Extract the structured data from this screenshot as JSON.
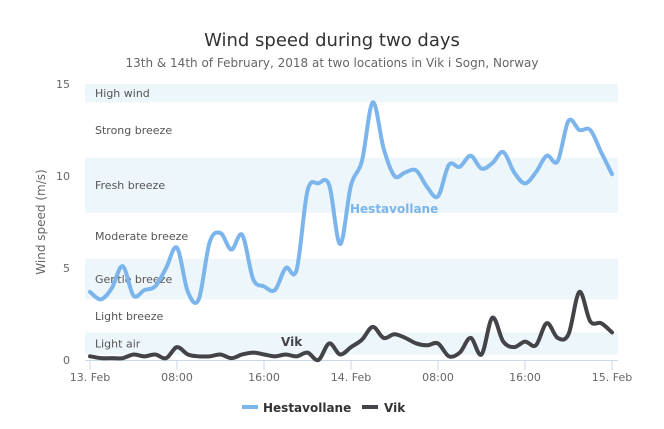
{
  "chart_data": {
    "type": "line",
    "title": "Wind speed during two days",
    "subtitle": "13th & 14th of February, 2018 at two locations in Vik i Sogn, Norway",
    "xlabel": "",
    "ylabel": "Wind speed (m/s)",
    "ylim": [
      0,
      15
    ],
    "yticks": [
      "0",
      "5",
      "10",
      "15"
    ],
    "x_start": "2018-02-13 00:00",
    "x_interval_hours": 1,
    "xticks": [
      {
        "hour": 0,
        "label": "13. Feb"
      },
      {
        "hour": 8,
        "label": "08:00"
      },
      {
        "hour": 16,
        "label": "16:00"
      },
      {
        "hour": 24,
        "label": "14. Feb"
      },
      {
        "hour": 32,
        "label": "08:00"
      },
      {
        "hour": 40,
        "label": "16:00"
      },
      {
        "hour": 48,
        "label": "15. Feb"
      }
    ],
    "grid": false,
    "legend": "bottom-center",
    "plot_bands": [
      {
        "from": 0.3,
        "to": 1.5,
        "label": "Light air",
        "shaded": true
      },
      {
        "from": 1.5,
        "to": 3.3,
        "label": "Light breeze",
        "shaded": false
      },
      {
        "from": 3.3,
        "to": 5.5,
        "label": "Gentle breeze",
        "shaded": true
      },
      {
        "from": 5.5,
        "to": 8,
        "label": "Moderate breeze",
        "shaded": false
      },
      {
        "from": 8,
        "to": 11,
        "label": "Fresh breeze",
        "shaded": true
      },
      {
        "from": 11,
        "to": 14,
        "label": "Strong breeze",
        "shaded": false
      },
      {
        "from": 14,
        "to": 15,
        "label": "High wind",
        "shaded": true
      }
    ],
    "band_color": "#ecf6fb",
    "series": [
      {
        "name": "Hestavollane",
        "color": "#7cb5ec",
        "values": [
          3.7,
          3.3,
          3.9,
          5.1,
          3.5,
          3.8,
          4.0,
          5.0,
          6.1,
          3.7,
          3.3,
          6.4,
          6.9,
          6.0,
          6.8,
          4.4,
          4.0,
          3.8,
          5.0,
          4.9,
          9.2,
          9.6,
          9.5,
          6.3,
          9.5,
          10.8,
          14.0,
          11.5,
          10.0,
          10.2,
          10.3,
          9.4,
          8.9,
          10.6,
          10.5,
          11.1,
          10.4,
          10.7,
          11.3,
          10.2,
          9.6,
          10.2,
          11.1,
          10.8,
          13.0,
          12.5,
          12.5,
          11.3,
          10.1
        ]
      },
      {
        "name": "Vik",
        "color": "#434348",
        "values": [
          0.2,
          0.1,
          0.1,
          0.1,
          0.3,
          0.2,
          0.3,
          0.1,
          0.7,
          0.3,
          0.2,
          0.2,
          0.3,
          0.1,
          0.3,
          0.4,
          0.3,
          0.2,
          0.3,
          0.2,
          0.4,
          0.0,
          0.9,
          0.3,
          0.7,
          1.1,
          1.8,
          1.2,
          1.4,
          1.2,
          0.9,
          0.8,
          0.9,
          0.2,
          0.4,
          1.2,
          0.3,
          2.3,
          1.0,
          0.7,
          1.0,
          0.8,
          2.0,
          1.2,
          1.4,
          3.7,
          2.1,
          2.0,
          1.5
        ]
      }
    ]
  }
}
